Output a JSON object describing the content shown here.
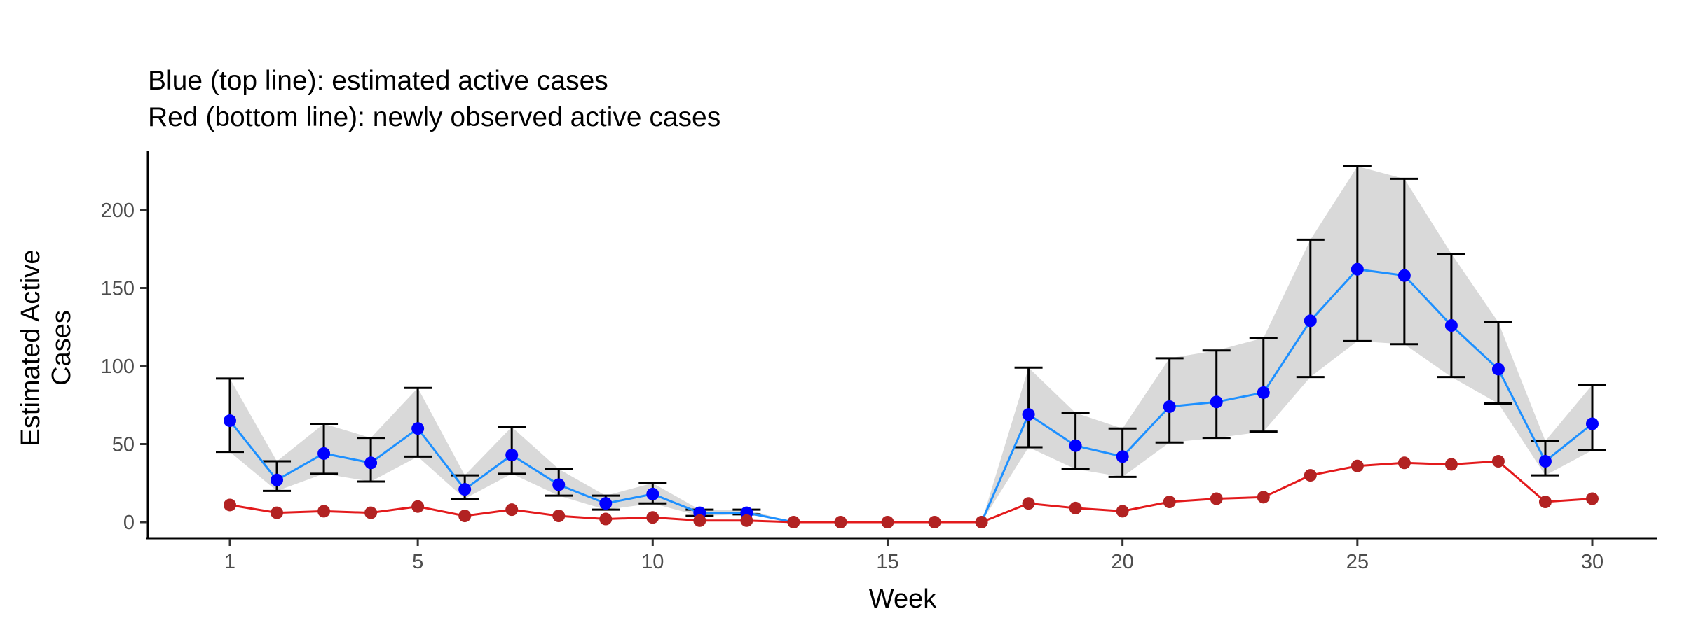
{
  "chart_data": {
    "type": "line",
    "title": "Blue (top line): estimated active cases",
    "subtitle": "Red (bottom line): newly observed active cases",
    "xlabel": "Week",
    "ylabel": "Estimated Active Cases",
    "xlim": [
      0,
      32
    ],
    "ylim": [
      -10,
      235
    ],
    "xticks": [
      1,
      5,
      10,
      15,
      20,
      25,
      30
    ],
    "yticks": [
      0,
      50,
      100,
      150,
      200
    ],
    "grid": false,
    "legend": "none",
    "x": [
      1,
      2,
      3,
      4,
      5,
      6,
      7,
      8,
      9,
      10,
      11,
      12,
      13,
      14,
      15,
      16,
      17,
      18,
      19,
      20,
      21,
      22,
      23,
      24,
      25,
      26,
      27,
      28,
      29,
      30
    ],
    "series": [
      {
        "color": "#1e90ff",
        "point_color": "#0000ff",
        "band_color": "#d9d9d9",
        "values": [
          65,
          27,
          44,
          38,
          60,
          21,
          43,
          24,
          12,
          18,
          6,
          6,
          0,
          0,
          0,
          0,
          0,
          69,
          49,
          42,
          74,
          77,
          83,
          129,
          162,
          158,
          126,
          98,
          39,
          63
        ],
        "upper": [
          92,
          39,
          63,
          54,
          86,
          30,
          61,
          34,
          17,
          25,
          8,
          8,
          0,
          0,
          0,
          0,
          0,
          99,
          70,
          60,
          105,
          110,
          118,
          181,
          228,
          220,
          172,
          128,
          52,
          88
        ],
        "lower": [
          45,
          20,
          31,
          26,
          42,
          15,
          31,
          17,
          8,
          12,
          4,
          5,
          0,
          0,
          0,
          0,
          0,
          48,
          34,
          29,
          51,
          54,
          58,
          93,
          116,
          114,
          93,
          76,
          30,
          46
        ]
      },
      {
        "color": "#e31a1c",
        "point_color": "#b22222",
        "values": [
          11,
          6,
          7,
          6,
          10,
          4,
          8,
          4,
          2,
          3,
          1,
          1,
          0,
          0,
          0,
          0,
          0,
          12,
          9,
          7,
          13,
          15,
          16,
          30,
          36,
          38,
          37,
          39,
          13,
          15
        ]
      }
    ]
  }
}
